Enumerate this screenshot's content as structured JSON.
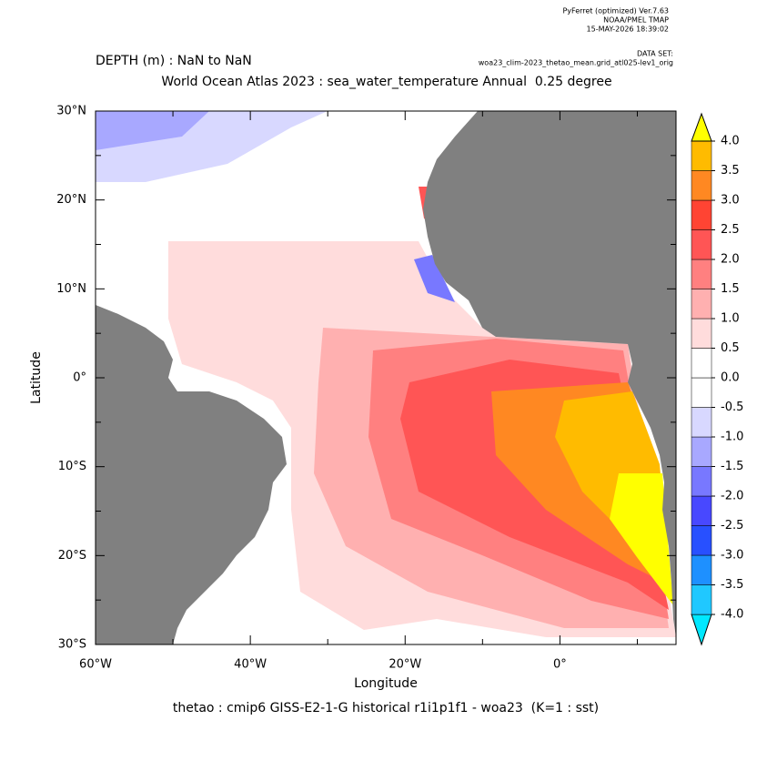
{
  "chart_data": {
    "type": "map",
    "header": [
      "PyFerret (optimized) Ver.7.63",
      "NOAA/PMEL TMAP",
      "15-MAY-2026 18:39:02"
    ],
    "dataset_label": "DATA SET:",
    "dataset": "woa23_clim-2023_thetao_mean.grid_atl025-lev1_orig",
    "depth": "DEPTH (m) : NaN to NaN",
    "title": "World Ocean Atlas 2023 : sea_water_temperature Annual  0.25 degree",
    "xlabel": "Longitude",
    "ylabel": "Latitude",
    "footer": "thetao : cmip6 GISS-E2-1-G historical r1i1p1f1 - woa23  (K=1 : sst)",
    "xlim": [
      -60,
      15
    ],
    "ylim": [
      -30,
      30
    ],
    "xticks": [
      {
        "value": -60,
        "label": "60°W"
      },
      {
        "value": -40,
        "label": "40°W"
      },
      {
        "value": -20,
        "label": "20°W"
      },
      {
        "value": 0,
        "label": "0°"
      }
    ],
    "xminor": [
      -50,
      -30,
      -10,
      10
    ],
    "yticks": [
      {
        "value": 30,
        "label": "30°N"
      },
      {
        "value": 20,
        "label": "20°N"
      },
      {
        "value": 10,
        "label": "10°N"
      },
      {
        "value": 0,
        "label": "0°"
      },
      {
        "value": -10,
        "label": "10°S"
      },
      {
        "value": -20,
        "label": "20°S"
      },
      {
        "value": -30,
        "label": "30°S"
      }
    ],
    "yminor": [
      25,
      15,
      5,
      -5,
      -15,
      -25
    ],
    "colorbar": {
      "levels": [
        {
          "value": -4,
          "label": "-4.0"
        },
        -3.5,
        {
          "value": -3,
          "label": "-3.0"
        },
        -2.5,
        {
          "value": -2,
          "label": "-2.0"
        },
        -1.5,
        {
          "value": -1,
          "label": "-1.0"
        },
        -0.5,
        {
          "value": 0,
          "label": "0.0"
        },
        0.5,
        {
          "value": 1,
          "label": "1.0"
        },
        1.5,
        {
          "value": 2,
          "label": "2.0"
        },
        2.5,
        {
          "value": 3,
          "label": "3.0"
        },
        3.5,
        {
          "value": 4,
          "label": "4.0"
        }
      ],
      "colors": [
        "#00e8ff",
        "#20c8ff",
        "#1e90ff",
        "#2850ff",
        "#4848ff",
        "#7878ff",
        "#a8a8ff",
        "#d8d8ff",
        "#ffffff",
        "#ffffff",
        "#ffdcdc",
        "#ffb0b0",
        "#ff8080",
        "#ff5555",
        "#ff4433",
        "#ff8822",
        "#ffbb00",
        "#ffff00"
      ]
    }
  }
}
